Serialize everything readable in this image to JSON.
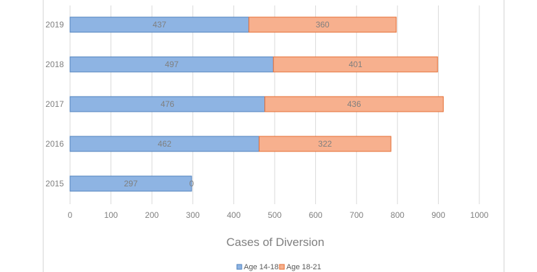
{
  "chart_data": {
    "type": "bar",
    "orientation": "horizontal",
    "stacked": true,
    "categories": [
      "2015",
      "2016",
      "2017",
      "2018",
      "2019"
    ],
    "series": [
      {
        "name": "Age 14-18",
        "values": [
          297,
          462,
          476,
          497,
          437
        ],
        "color": "#8eb4e3",
        "stroke": "#4f81bd"
      },
      {
        "name": "Age 18-21",
        "values": [
          0,
          322,
          436,
          401,
          360
        ],
        "color": "#f7b08e",
        "stroke": "#e46c32"
      }
    ],
    "xlabel": "Cases of Diversion",
    "ylabel": "",
    "xlim": [
      0,
      1000
    ],
    "xticks": [
      "0",
      "100",
      "200",
      "300",
      "400",
      "500",
      "600",
      "700",
      "800",
      "900",
      "1000"
    ],
    "grid": true,
    "legend": "bottom",
    "data_labels": true,
    "colors": {
      "gridline": "#d9d9d9",
      "tick_text": "#7f7f7f",
      "data_label": "#7f7f7f",
      "axis_title": "#7f7f7f",
      "border": "#d0d0d0"
    }
  }
}
